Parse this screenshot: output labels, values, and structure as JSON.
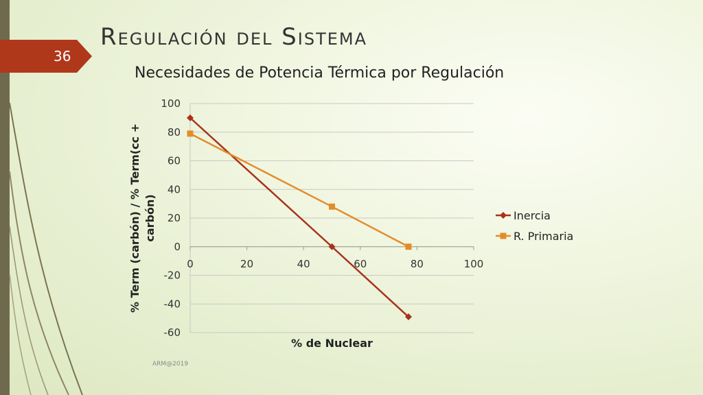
{
  "slide": {
    "number": "36",
    "title": "Regulación del Sistema",
    "footer": "ARM@2019"
  },
  "colors": {
    "accent": "#b0381a",
    "inercia": "#a8321b",
    "r_primaria": "#e38c2a"
  },
  "chart_data": {
    "type": "line",
    "title": "Necesidades de Potencia Térmica por Regulación",
    "xlabel": "% de Nuclear",
    "ylabel": "% Term (carbón) / % Term(cc + carbón)",
    "xlim": [
      0,
      100
    ],
    "ylim": [
      -60,
      100
    ],
    "xticks": [
      0,
      20,
      40,
      60,
      80,
      100
    ],
    "yticks": [
      100,
      80,
      60,
      40,
      20,
      0,
      -20,
      -40,
      -60
    ],
    "grid": true,
    "legend": "right",
    "series": [
      {
        "name": "Inercia",
        "marker": "diamond",
        "points": [
          [
            0,
            90
          ],
          [
            50,
            0
          ],
          [
            77,
            -49
          ]
        ]
      },
      {
        "name": "R. Primaria",
        "marker": "square",
        "points": [
          [
            0,
            79
          ],
          [
            50,
            28
          ],
          [
            77,
            0
          ]
        ]
      }
    ]
  }
}
